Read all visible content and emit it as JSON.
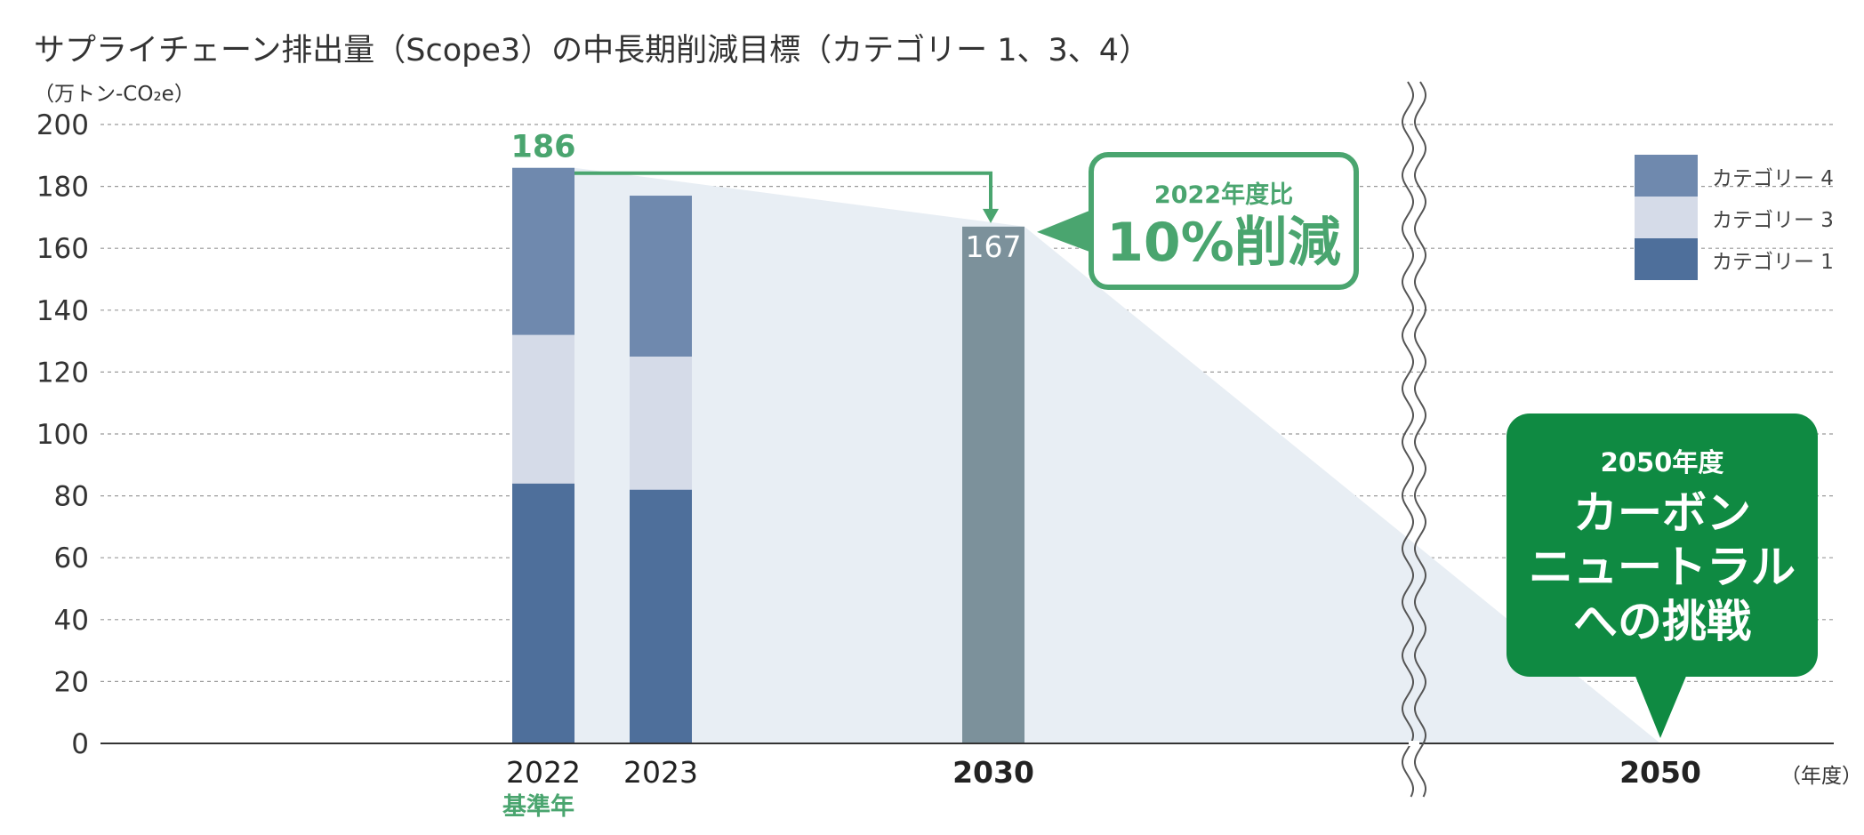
{
  "title": "サプライチェーン排出量（Scope3）の中長期削減目標（カテゴリー 1、3、4）",
  "y_unit": "（万トン-CO₂e）",
  "x_unit": "（年度）",
  "base_year_label": "基準年",
  "callout_2030": {
    "sub": "2022年度比",
    "main": "10%削減"
  },
  "callout_2050": {
    "sub": "2050年度",
    "lines": [
      "カーボン",
      "ニュートラル",
      "への挑戦"
    ]
  },
  "colors": {
    "category4": "#6f89ae",
    "category3": "#d5dbe8",
    "category1": "#4e6f9b",
    "target": "#7c919b",
    "area": "#e8eef4",
    "green": "#4aa56f",
    "dark_green": "#0f8a42"
  },
  "chart_data": {
    "type": "bar",
    "stacked": true,
    "categories": [
      "2022",
      "2023",
      "2030",
      "2050"
    ],
    "series": [
      {
        "name": "カテゴリー 1",
        "values": [
          84,
          82,
          null,
          null
        ]
      },
      {
        "name": "カテゴリー 3",
        "values": [
          48,
          43,
          null,
          null
        ]
      },
      {
        "name": "カテゴリー 4",
        "values": [
          54,
          52,
          null,
          null
        ]
      }
    ],
    "target": {
      "category": "2030",
      "value": 167
    },
    "total_labels": [
      {
        "category": "2022",
        "value": "186"
      },
      {
        "category": "2030",
        "value": "167"
      }
    ],
    "trajectory": [
      {
        "x": "2022",
        "y": 186
      },
      {
        "x": "2030",
        "y": 167
      },
      {
        "x": "2050",
        "y": 0
      }
    ],
    "ylim": [
      0,
      200
    ],
    "yticks": [
      0,
      20,
      40,
      60,
      80,
      100,
      120,
      140,
      160,
      180,
      200
    ],
    "legend": [
      "カテゴリー 4",
      "カテゴリー 3",
      "カテゴリー 1"
    ],
    "legend_position": "top-right",
    "grid": true,
    "axis_break": "between 2030 and 2050"
  }
}
